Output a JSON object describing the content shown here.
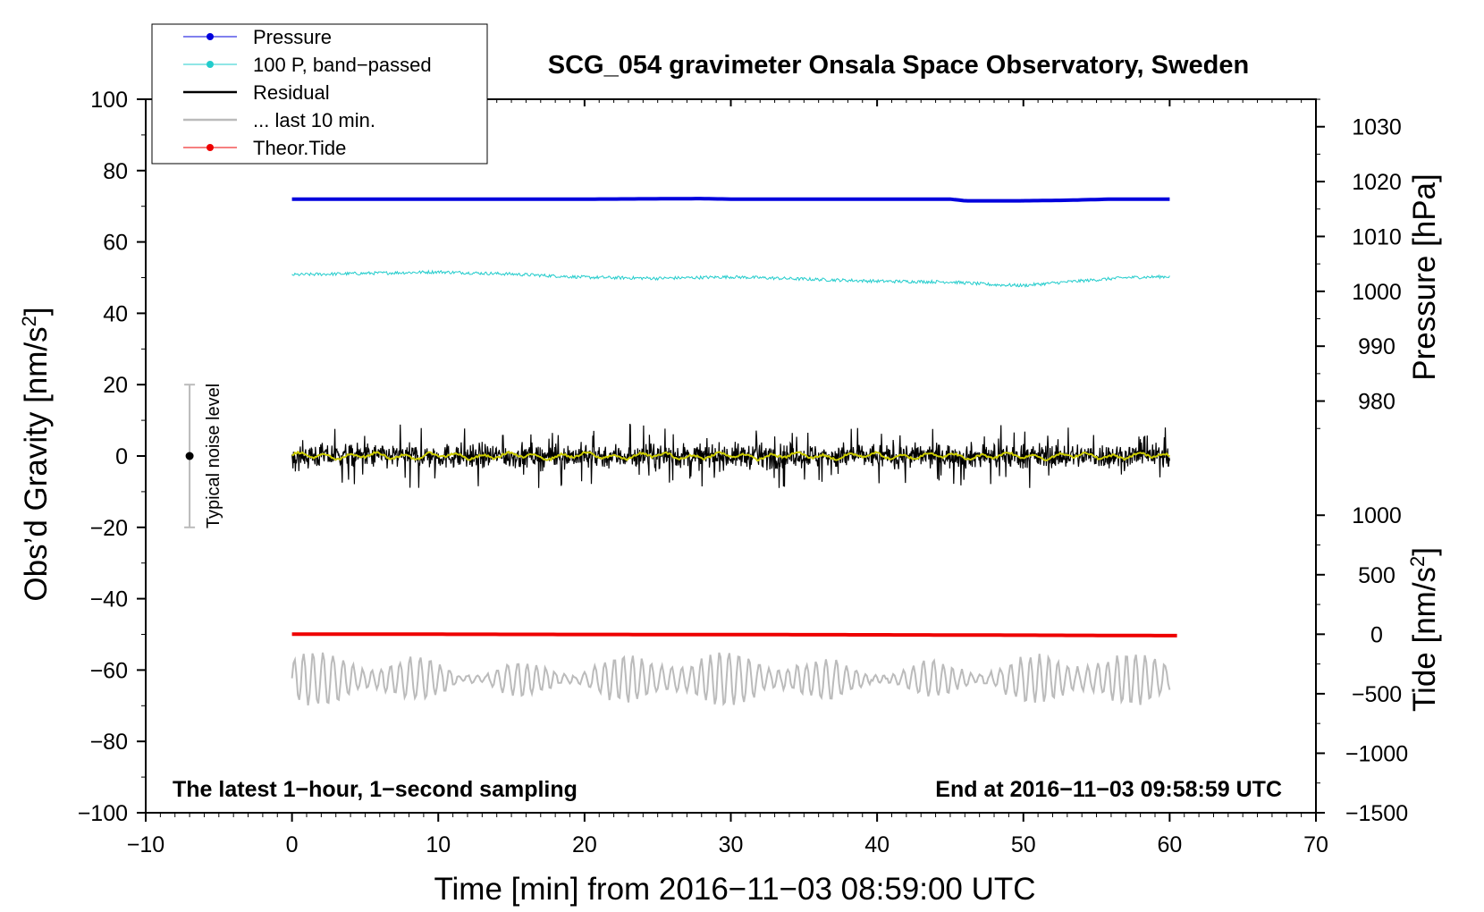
{
  "chart_data": {
    "type": "line",
    "title": "SCG_054 gravimeter Onsala Space Observatory, Sweden",
    "xlabel": "Time [min] from 2016−11−03 08:59:00 UTC",
    "ylabel_left": "Obs’d Gravity [nm/s",
    "ylabel_left_sup": "2",
    "ylabel_left_end": "]",
    "ylabel_right_top": "Pressure [hPa]",
    "ylabel_right_bottom": "Tide [nm/s",
    "ylabel_right_bottom_sup": "2",
    "ylabel_right_bottom_end": "]",
    "xlim": [
      -10,
      70
    ],
    "ylim_left": [
      -100,
      100
    ],
    "pressure_lim_ref": {
      "v1": 1030,
      "y1": 92.3,
      "v2": 980,
      "y2": 15.4
    },
    "tide_lim_ref": {
      "v1": 1000,
      "y1": -16.6,
      "v2": -1500,
      "y2": -100
    },
    "x_ticks": [
      {
        "v": -10,
        "label": "−10"
      },
      {
        "v": 0,
        "label": "0"
      },
      {
        "v": 10,
        "label": "10"
      },
      {
        "v": 20,
        "label": "20"
      },
      {
        "v": 30,
        "label": "30"
      },
      {
        "v": 40,
        "label": "40"
      },
      {
        "v": 50,
        "label": "50"
      },
      {
        "v": 60,
        "label": "60"
      },
      {
        "v": 70,
        "label": "70"
      }
    ],
    "y_left_ticks": [
      {
        "v": 100,
        "label": "100"
      },
      {
        "v": 80,
        "label": "80"
      },
      {
        "v": 60,
        "label": "60"
      },
      {
        "v": 40,
        "label": "40"
      },
      {
        "v": 20,
        "label": "20"
      },
      {
        "v": 0,
        "label": "0"
      },
      {
        "v": -20,
        "label": "−20"
      },
      {
        "v": -40,
        "label": "−40"
      },
      {
        "v": -60,
        "label": "−60"
      },
      {
        "v": -80,
        "label": "−80"
      },
      {
        "v": -100,
        "label": "−100"
      }
    ],
    "y_pressure_ticks": [
      {
        "v": 1030,
        "label": "1030"
      },
      {
        "v": 1020,
        "label": "1020"
      },
      {
        "v": 1010,
        "label": "1010"
      },
      {
        "v": 1000,
        "label": "1000"
      },
      {
        "v": 990,
        "label": "990"
      },
      {
        "v": 980,
        "label": "980"
      }
    ],
    "y_tide_ticks": [
      {
        "v": 1000,
        "label": "1000"
      },
      {
        "v": 500,
        "label": "500"
      },
      {
        "v": 0,
        "label": "0"
      },
      {
        "v": -500,
        "label": "−500"
      },
      {
        "v": -1000,
        "label": "−1000"
      },
      {
        "v": -1500,
        "label": "−1500"
      }
    ],
    "legend": [
      {
        "label": "Pressure",
        "color": "#0000dd",
        "marker": true
      },
      {
        "label": "100 P, band−passed",
        "color": "#22cccc",
        "marker": true
      },
      {
        "label": "Residual",
        "color": "#000000",
        "marker": false
      },
      {
        "label": "... last 10 min.",
        "color": "#bbbbbb",
        "marker": false
      },
      {
        "label": "Theor.Tide",
        "color": "#ee0000",
        "marker": true
      }
    ],
    "series": [
      {
        "name": "Pressure",
        "axis": "pressure",
        "color": "#0000dd",
        "x": [
          0,
          10,
          20,
          28,
          30,
          38,
          45,
          46,
          50,
          53,
          56,
          60
        ],
        "y": [
          1016.8,
          1016.8,
          1016.8,
          1016.9,
          1016.8,
          1016.8,
          1016.8,
          1016.5,
          1016.5,
          1016.6,
          1016.8,
          1016.8
        ]
      },
      {
        "name": "100 P, band−passed",
        "axis": "gravity",
        "color": "#22cccc",
        "x": [
          0,
          5,
          10,
          15,
          20,
          25,
          30,
          35,
          40,
          45,
          48,
          50,
          53,
          57,
          60
        ],
        "y": [
          50.8,
          51.2,
          51.6,
          51.0,
          50.1,
          49.8,
          50.2,
          49.6,
          49.0,
          48.8,
          48.0,
          47.8,
          48.8,
          50.0,
          50.3
        ]
      },
      {
        "name": "Residual",
        "axis": "gravity",
        "color": "#000000",
        "x": [
          0,
          60
        ],
        "y": [
          0,
          0
        ],
        "noise_amplitude": 4.5
      },
      {
        "name": "Residual (smoothed)",
        "axis": "gravity",
        "color": "#cccc00",
        "x": [
          0,
          60
        ],
        "y": [
          0,
          0
        ]
      },
      {
        "name": "... last 10 min.",
        "axis": "gravity",
        "color": "#bbbbbb",
        "x": [
          0,
          60
        ],
        "y": [
          -62.5,
          -62.5
        ],
        "oscillation_amplitude": 4
      },
      {
        "name": "Theor.Tide",
        "axis": "tide",
        "color": "#ee0000",
        "x": [
          0,
          10,
          20,
          30,
          40,
          50,
          60.5
        ],
        "y": [
          0,
          0,
          -2,
          -3,
          -5,
          -8,
          -12
        ]
      }
    ],
    "noise_bar": {
      "x": -7,
      "y_low": -20,
      "y_high": 20,
      "label": "Typical noise level"
    },
    "annotations": [
      {
        "text": "The latest 1−hour, 1−second sampling",
        "position": "bottom-left"
      },
      {
        "text": "End at 2016−11−03 09:58:59 UTC",
        "position": "bottom-right"
      }
    ],
    "legend_position": "top-left"
  }
}
